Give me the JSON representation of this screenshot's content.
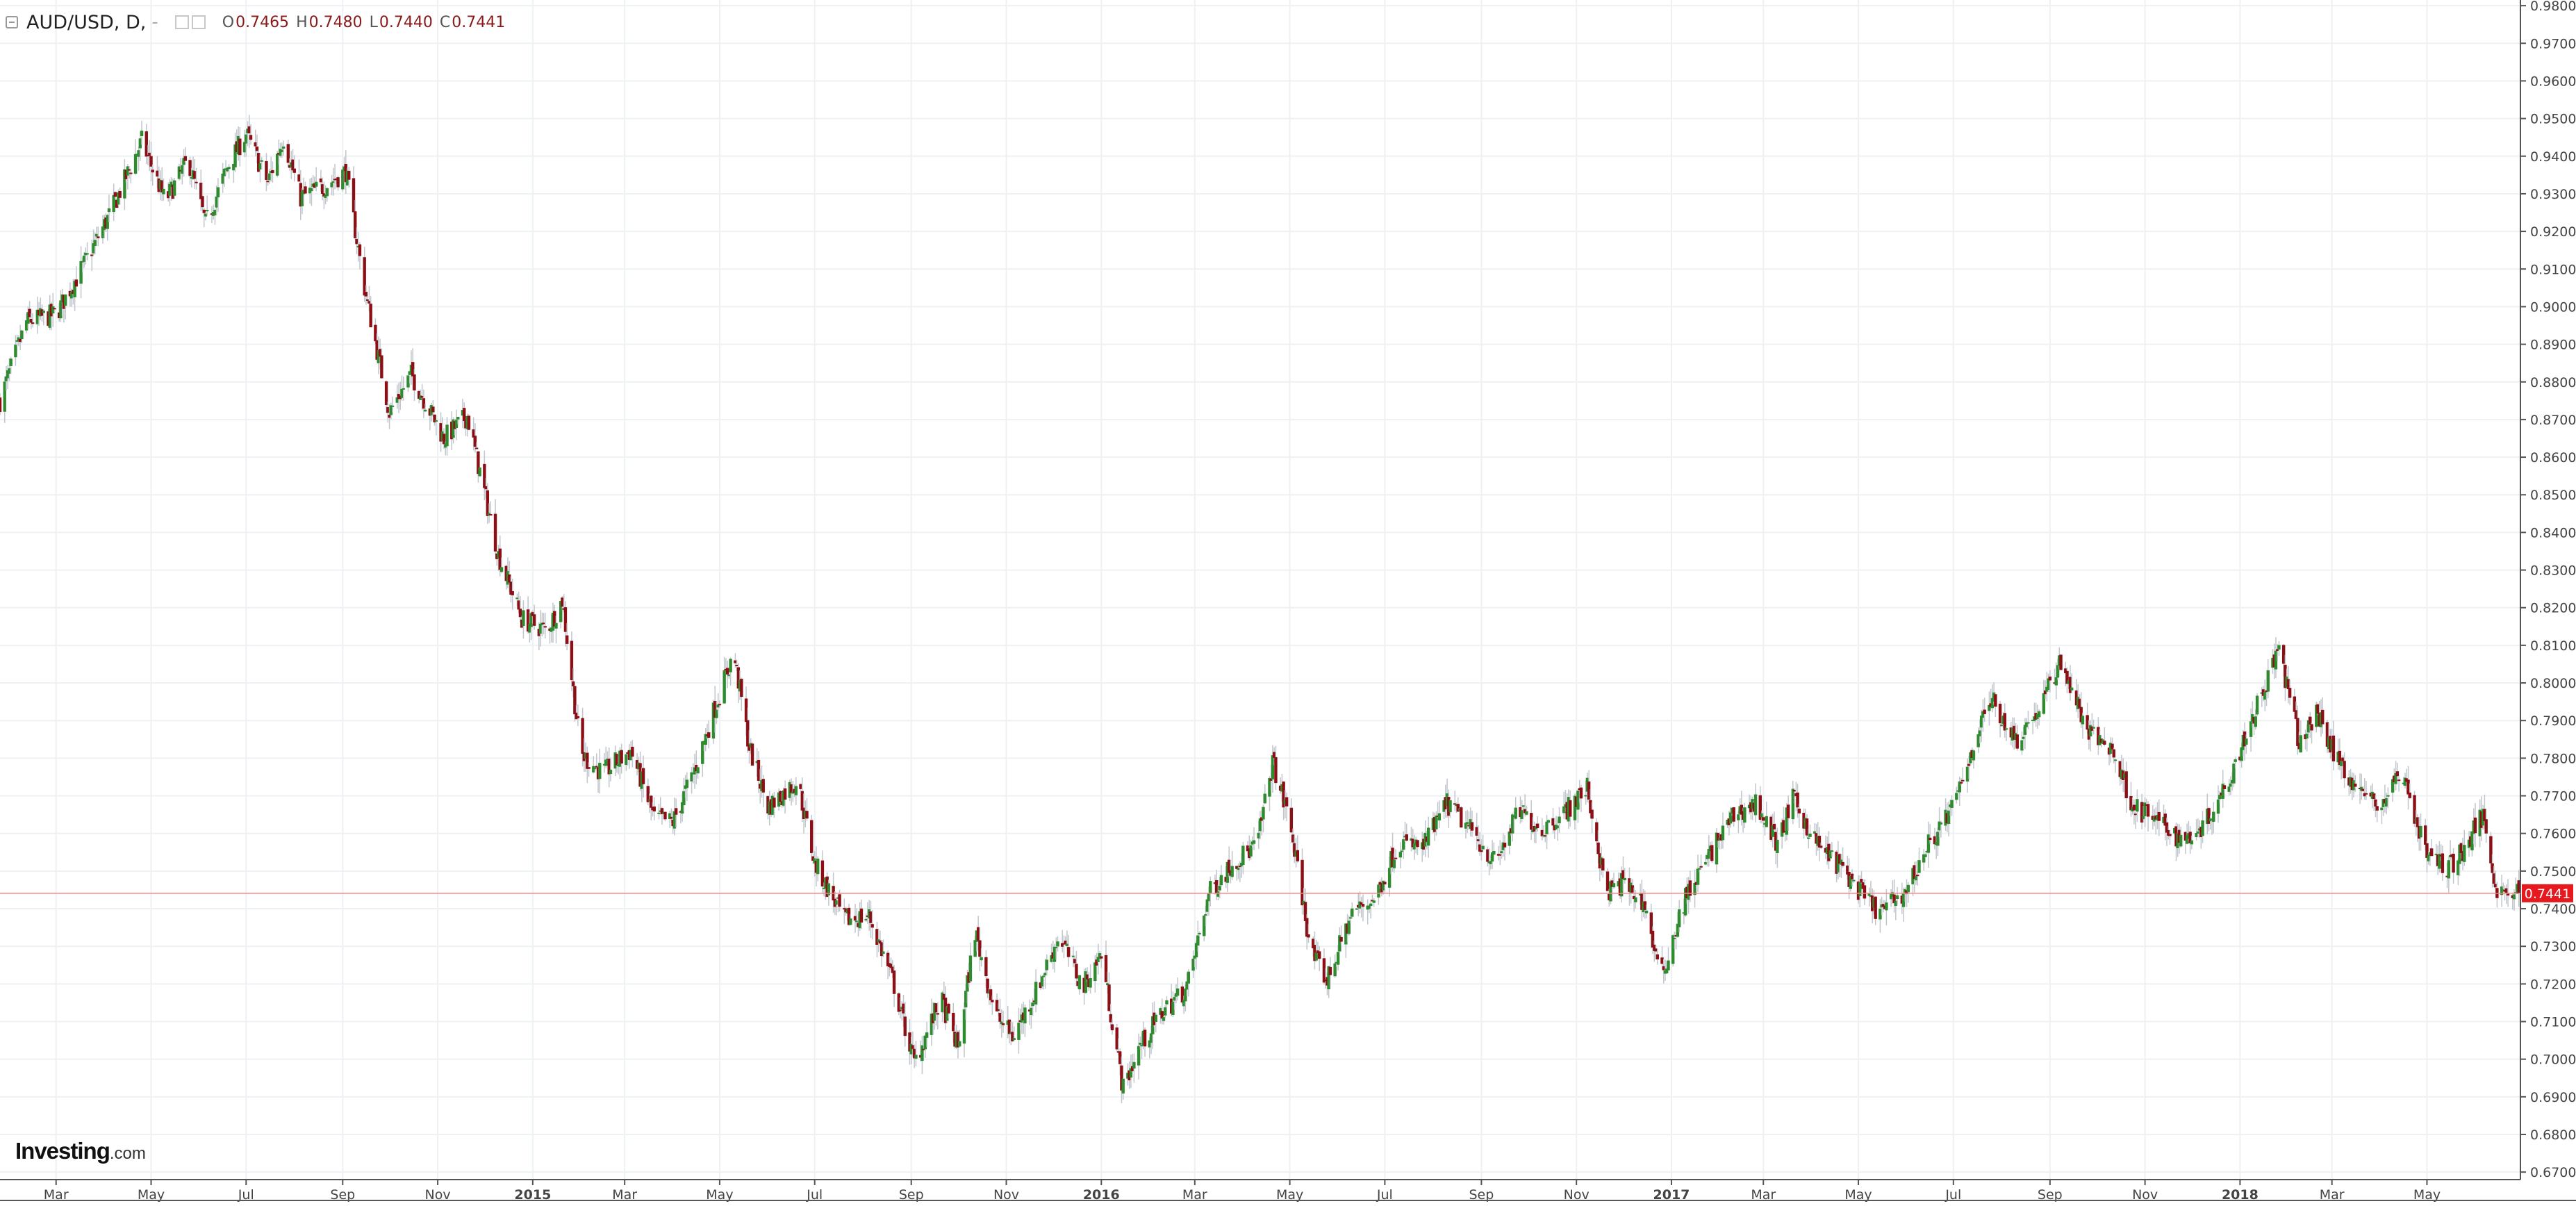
{
  "legend": {
    "symbol": "AUD/USD, D,",
    "dash": "-",
    "open_label": "O",
    "open": "0.7465",
    "high_label": "H",
    "high": "0.7480",
    "low_label": "L",
    "low": "0.7440",
    "close_label": "C",
    "close": "0.7441"
  },
  "brand": {
    "name": "Investing",
    "suffix": ".com"
  },
  "colors": {
    "up": "#2e8b2e",
    "down": "#8b0f14",
    "wick": "#c0c6cc",
    "last_price": "#e8191e",
    "grid": "#eef1f4"
  },
  "chart_data": {
    "type": "candlestick",
    "title": "AUD/USD, D,",
    "interval": "D",
    "last_price": 0.7441,
    "last_price_label": "0.7441",
    "ylim": [
      0.668,
      0.9815
    ],
    "y_ticks": [
      "0.6700",
      "0.6800",
      "0.6900",
      "0.7000",
      "0.7100",
      "0.7200",
      "0.7300",
      "0.7400",
      "0.7500",
      "0.7600",
      "0.7700",
      "0.7800",
      "0.7900",
      "0.8000",
      "0.8100",
      "0.8200",
      "0.8300",
      "0.8400",
      "0.8500",
      "0.8600",
      "0.8700",
      "0.8800",
      "0.8900",
      "0.9000",
      "0.9100",
      "0.9200",
      "0.9300",
      "0.9400",
      "0.9500",
      "0.9600",
      "0.9700",
      "0.9800"
    ],
    "x_ticks": [
      {
        "label": "Mar",
        "date": "2014-03-01",
        "bold": false
      },
      {
        "label": "May",
        "date": "2014-05-01",
        "bold": false
      },
      {
        "label": "Jul",
        "date": "2014-07-01",
        "bold": false
      },
      {
        "label": "Sep",
        "date": "2014-09-01",
        "bold": false
      },
      {
        "label": "Nov",
        "date": "2014-11-01",
        "bold": false
      },
      {
        "label": "2015",
        "date": "2015-01-01",
        "bold": true
      },
      {
        "label": "Mar",
        "date": "2015-03-01",
        "bold": false
      },
      {
        "label": "May",
        "date": "2015-05-01",
        "bold": false
      },
      {
        "label": "Jul",
        "date": "2015-07-01",
        "bold": false
      },
      {
        "label": "Sep",
        "date": "2015-09-01",
        "bold": false
      },
      {
        "label": "Nov",
        "date": "2015-11-01",
        "bold": false
      },
      {
        "label": "2016",
        "date": "2016-01-01",
        "bold": true
      },
      {
        "label": "Mar",
        "date": "2016-03-01",
        "bold": false
      },
      {
        "label": "May",
        "date": "2016-05-01",
        "bold": false
      },
      {
        "label": "Jul",
        "date": "2016-07-01",
        "bold": false
      },
      {
        "label": "Sep",
        "date": "2016-09-01",
        "bold": false
      },
      {
        "label": "Nov",
        "date": "2016-11-01",
        "bold": false
      },
      {
        "label": "2017",
        "date": "2017-01-01",
        "bold": true
      },
      {
        "label": "Mar",
        "date": "2017-03-01",
        "bold": false
      },
      {
        "label": "May",
        "date": "2017-05-01",
        "bold": false
      },
      {
        "label": "Jul",
        "date": "2017-07-01",
        "bold": false
      },
      {
        "label": "Sep",
        "date": "2017-09-01",
        "bold": false
      },
      {
        "label": "Nov",
        "date": "2017-11-01",
        "bold": false
      },
      {
        "label": "2018",
        "date": "2018-01-01",
        "bold": true
      },
      {
        "label": "Mar",
        "date": "2018-03-01",
        "bold": false
      },
      {
        "label": "May",
        "date": "2018-05-01",
        "bold": false
      }
    ],
    "x_range": [
      "2014-01-24",
      "2018-06-30"
    ],
    "close_path": [
      {
        "date": "2014-01-24",
        "close": 0.875
      },
      {
        "date": "2014-02-10",
        "close": 0.896
      },
      {
        "date": "2014-03-01",
        "close": 0.898
      },
      {
        "date": "2014-03-20",
        "close": 0.912
      },
      {
        "date": "2014-04-05",
        "close": 0.925
      },
      {
        "date": "2014-04-25",
        "close": 0.944
      },
      {
        "date": "2014-05-10",
        "close": 0.928
      },
      {
        "date": "2014-05-25",
        "close": 0.939
      },
      {
        "date": "2014-06-05",
        "close": 0.922
      },
      {
        "date": "2014-06-20",
        "close": 0.938
      },
      {
        "date": "2014-07-01",
        "close": 0.946
      },
      {
        "date": "2014-07-15",
        "close": 0.933
      },
      {
        "date": "2014-07-25",
        "close": 0.945
      },
      {
        "date": "2014-08-05",
        "close": 0.929
      },
      {
        "date": "2014-08-20",
        "close": 0.932
      },
      {
        "date": "2014-09-03",
        "close": 0.936
      },
      {
        "date": "2014-09-15",
        "close": 0.905
      },
      {
        "date": "2014-10-01",
        "close": 0.872
      },
      {
        "date": "2014-10-15",
        "close": 0.882
      },
      {
        "date": "2014-10-25",
        "close": 0.874
      },
      {
        "date": "2014-11-05",
        "close": 0.865
      },
      {
        "date": "2014-11-20",
        "close": 0.871
      },
      {
        "date": "2014-12-10",
        "close": 0.834
      },
      {
        "date": "2014-12-25",
        "close": 0.817
      },
      {
        "date": "2015-01-10",
        "close": 0.814
      },
      {
        "date": "2015-01-20",
        "close": 0.822
      },
      {
        "date": "2015-02-01",
        "close": 0.781
      },
      {
        "date": "2015-02-15",
        "close": 0.776
      },
      {
        "date": "2015-03-05",
        "close": 0.782
      },
      {
        "date": "2015-03-20",
        "close": 0.764
      },
      {
        "date": "2015-04-01",
        "close": 0.763
      },
      {
        "date": "2015-04-15",
        "close": 0.777
      },
      {
        "date": "2015-04-30",
        "close": 0.796
      },
      {
        "date": "2015-05-10",
        "close": 0.808
      },
      {
        "date": "2015-05-20",
        "close": 0.783
      },
      {
        "date": "2015-06-01",
        "close": 0.767
      },
      {
        "date": "2015-06-20",
        "close": 0.774
      },
      {
        "date": "2015-07-01",
        "close": 0.752
      },
      {
        "date": "2015-07-20",
        "close": 0.737
      },
      {
        "date": "2015-08-05",
        "close": 0.738
      },
      {
        "date": "2015-08-20",
        "close": 0.721
      },
      {
        "date": "2015-09-03",
        "close": 0.699
      },
      {
        "date": "2015-09-20",
        "close": 0.716
      },
      {
        "date": "2015-10-01",
        "close": 0.703
      },
      {
        "date": "2015-10-12",
        "close": 0.734
      },
      {
        "date": "2015-10-25",
        "close": 0.712
      },
      {
        "date": "2015-11-05",
        "close": 0.706
      },
      {
        "date": "2015-11-20",
        "close": 0.718
      },
      {
        "date": "2015-12-05",
        "close": 0.733
      },
      {
        "date": "2015-12-20",
        "close": 0.719
      },
      {
        "date": "2016-01-01",
        "close": 0.728
      },
      {
        "date": "2016-01-15",
        "close": 0.692
      },
      {
        "date": "2016-01-25",
        "close": 0.703
      },
      {
        "date": "2016-02-10",
        "close": 0.713
      },
      {
        "date": "2016-02-25",
        "close": 0.719
      },
      {
        "date": "2016-03-10",
        "close": 0.744
      },
      {
        "date": "2016-03-25",
        "close": 0.752
      },
      {
        "date": "2016-04-10",
        "close": 0.757
      },
      {
        "date": "2016-04-20",
        "close": 0.779
      },
      {
        "date": "2016-05-01",
        "close": 0.763
      },
      {
        "date": "2016-05-15",
        "close": 0.728
      },
      {
        "date": "2016-05-25",
        "close": 0.721
      },
      {
        "date": "2016-06-10",
        "close": 0.739
      },
      {
        "date": "2016-06-25",
        "close": 0.743
      },
      {
        "date": "2016-07-10",
        "close": 0.758
      },
      {
        "date": "2016-07-25",
        "close": 0.756
      },
      {
        "date": "2016-08-10",
        "close": 0.768
      },
      {
        "date": "2016-08-25",
        "close": 0.761
      },
      {
        "date": "2016-09-10",
        "close": 0.752
      },
      {
        "date": "2016-09-25",
        "close": 0.766
      },
      {
        "date": "2016-10-10",
        "close": 0.761
      },
      {
        "date": "2016-10-25",
        "close": 0.766
      },
      {
        "date": "2016-11-08",
        "close": 0.772
      },
      {
        "date": "2016-11-20",
        "close": 0.744
      },
      {
        "date": "2016-12-01",
        "close": 0.747
      },
      {
        "date": "2016-12-15",
        "close": 0.741
      },
      {
        "date": "2016-12-25",
        "close": 0.721
      },
      {
        "date": "2017-01-10",
        "close": 0.743
      },
      {
        "date": "2017-01-25",
        "close": 0.754
      },
      {
        "date": "2017-02-10",
        "close": 0.765
      },
      {
        "date": "2017-02-25",
        "close": 0.768
      },
      {
        "date": "2017-03-10",
        "close": 0.757
      },
      {
        "date": "2017-03-20",
        "close": 0.769
      },
      {
        "date": "2017-04-05",
        "close": 0.757
      },
      {
        "date": "2017-04-20",
        "close": 0.751
      },
      {
        "date": "2017-05-05",
        "close": 0.743
      },
      {
        "date": "2017-05-15",
        "close": 0.739
      },
      {
        "date": "2017-06-01",
        "close": 0.745
      },
      {
        "date": "2017-06-15",
        "close": 0.757
      },
      {
        "date": "2017-07-01",
        "close": 0.767
      },
      {
        "date": "2017-07-15",
        "close": 0.785
      },
      {
        "date": "2017-07-25",
        "close": 0.796
      },
      {
        "date": "2017-08-10",
        "close": 0.785
      },
      {
        "date": "2017-08-25",
        "close": 0.793
      },
      {
        "date": "2017-09-08",
        "close": 0.806
      },
      {
        "date": "2017-09-25",
        "close": 0.787
      },
      {
        "date": "2017-10-10",
        "close": 0.783
      },
      {
        "date": "2017-10-25",
        "close": 0.767
      },
      {
        "date": "2017-11-10",
        "close": 0.763
      },
      {
        "date": "2017-11-25",
        "close": 0.758
      },
      {
        "date": "2017-12-10",
        "close": 0.763
      },
      {
        "date": "2017-12-25",
        "close": 0.775
      },
      {
        "date": "2018-01-10",
        "close": 0.792
      },
      {
        "date": "2018-01-26",
        "close": 0.809
      },
      {
        "date": "2018-02-08",
        "close": 0.784
      },
      {
        "date": "2018-02-20",
        "close": 0.792
      },
      {
        "date": "2018-03-05",
        "close": 0.779
      },
      {
        "date": "2018-03-20",
        "close": 0.771
      },
      {
        "date": "2018-04-01",
        "close": 0.767
      },
      {
        "date": "2018-04-15",
        "close": 0.777
      },
      {
        "date": "2018-04-30",
        "close": 0.755
      },
      {
        "date": "2018-05-15",
        "close": 0.751
      },
      {
        "date": "2018-05-25",
        "close": 0.756
      },
      {
        "date": "2018-06-06",
        "close": 0.765
      },
      {
        "date": "2018-06-15",
        "close": 0.745
      },
      {
        "date": "2018-06-30",
        "close": 0.7441
      }
    ],
    "grid": true,
    "y_axis_position": "right"
  }
}
